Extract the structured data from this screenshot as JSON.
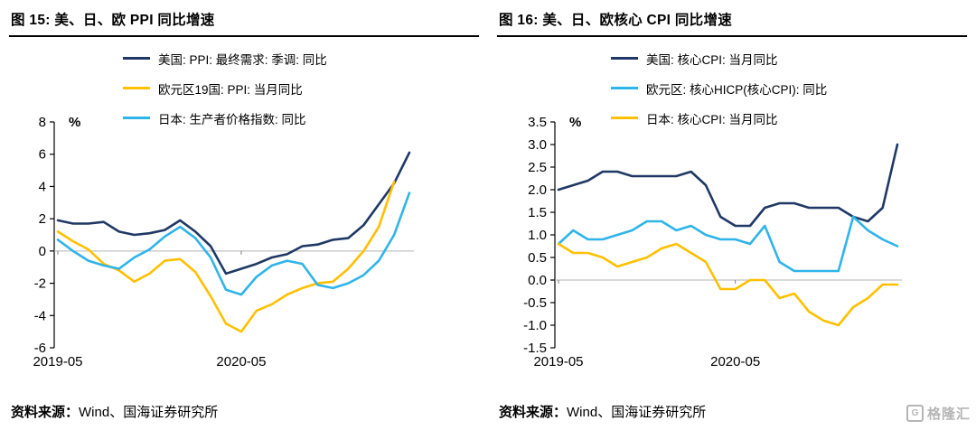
{
  "chart_data": [
    {
      "type": "line",
      "title": "图 15:  美、日、欧 PPI 同比增速",
      "unit": "%",
      "ylim": [
        -6,
        8
      ],
      "ytick_step": 2,
      "ytick_decimals": 0,
      "n_points": 24,
      "x_labels": [
        {
          "index": 0,
          "label": "2019-05"
        },
        {
          "index": 12,
          "label": "2020-05"
        }
      ],
      "grid": "zero-line-only",
      "legend_position": "top-center",
      "series": [
        {
          "name": "美国: PPI: 最终需求: 季调: 同比",
          "color": "#1f3864",
          "values": [
            1.9,
            1.7,
            1.7,
            1.8,
            1.2,
            1.0,
            1.1,
            1.3,
            1.9,
            1.2,
            0.3,
            -1.4,
            -1.1,
            -0.8,
            -0.4,
            -0.2,
            0.3,
            0.4,
            0.7,
            0.8,
            1.6,
            2.9,
            4.2,
            6.1
          ]
        },
        {
          "name": "欧元区19国: PPI: 当月同比",
          "color": "#ffc000",
          "values": [
            1.2,
            0.6,
            0.1,
            -0.8,
            -1.2,
            -1.9,
            -1.4,
            -0.6,
            -0.5,
            -1.3,
            -2.8,
            -4.5,
            -5.0,
            -3.7,
            -3.3,
            -2.7,
            -2.3,
            -2.0,
            -1.9,
            -1.1,
            0.0,
            1.5,
            4.3,
            null
          ]
        },
        {
          "name": "日本: 生产者价格指数: 同比",
          "color": "#2fb4e9",
          "values": [
            0.7,
            0.0,
            -0.6,
            -0.9,
            -1.1,
            -0.4,
            0.1,
            0.9,
            1.5,
            0.8,
            -0.4,
            -2.4,
            -2.7,
            -1.6,
            -0.9,
            -0.6,
            -0.8,
            -2.1,
            -2.3,
            -2.0,
            -1.5,
            -0.6,
            1.0,
            3.6
          ]
        }
      ],
      "source_prefix": "资料来源：",
      "source_text": "Wind、国海证券研究所"
    },
    {
      "type": "line",
      "title": "图 16:  美、日、欧核心 CPI 同比增速",
      "unit": "%",
      "ylim": [
        -1.5,
        3.5
      ],
      "ytick_step": 0.5,
      "ytick_decimals": 1,
      "n_points": 24,
      "x_labels": [
        {
          "index": 0,
          "label": "2019-05"
        },
        {
          "index": 12,
          "label": "2020-05"
        }
      ],
      "grid": "zero-line-only",
      "legend_position": "top-center",
      "series": [
        {
          "name": "美国: 核心CPI: 当月同比",
          "color": "#1f3864",
          "values": [
            2.0,
            2.1,
            2.2,
            2.4,
            2.4,
            2.3,
            2.3,
            2.3,
            2.3,
            2.4,
            2.1,
            1.4,
            1.2,
            1.2,
            1.6,
            1.7,
            1.7,
            1.6,
            1.6,
            1.6,
            1.4,
            1.3,
            1.6,
            3.0
          ]
        },
        {
          "name": "欧元区: 核心HICP(核心CPI): 同比",
          "color": "#2fb4e9",
          "values": [
            0.8,
            1.1,
            0.9,
            0.9,
            1.0,
            1.1,
            1.3,
            1.3,
            1.1,
            1.2,
            1.0,
            0.9,
            0.9,
            0.8,
            1.2,
            0.4,
            0.2,
            0.2,
            0.2,
            0.2,
            1.4,
            1.1,
            0.9,
            0.75
          ]
        },
        {
          "name": "日本: 核心CPI: 当月同比",
          "color": "#ffc000",
          "values": [
            0.8,
            0.6,
            0.6,
            0.5,
            0.3,
            0.4,
            0.5,
            0.7,
            0.8,
            0.6,
            0.4,
            -0.2,
            -0.2,
            0.0,
            0.0,
            -0.4,
            -0.3,
            -0.7,
            -0.9,
            -1.0,
            -0.6,
            -0.4,
            -0.1,
            -0.1
          ]
        }
      ],
      "source_prefix": "资料来源：",
      "source_text": "Wind、国海证券研究所"
    }
  ],
  "watermark": {
    "logo_letter": "G",
    "text": "格隆汇"
  }
}
